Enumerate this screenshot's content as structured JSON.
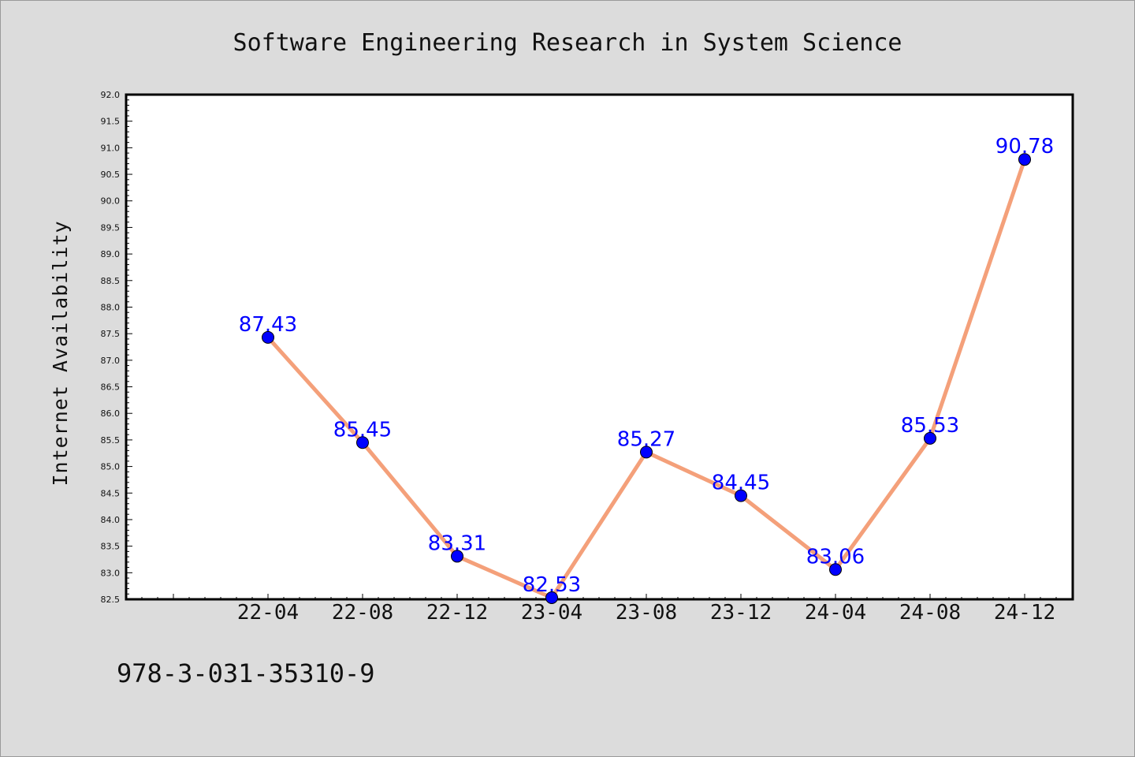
{
  "chart_data": {
    "type": "line",
    "title": "Software Engineering Research in System Science",
    "xlabel": "",
    "ylabel": "Internet Availability",
    "categories": [
      "22-04",
      "22-08",
      "22-12",
      "23-04",
      "23-08",
      "23-12",
      "24-04",
      "24-08",
      "24-12"
    ],
    "values": [
      87.43,
      85.45,
      83.31,
      82.53,
      85.27,
      84.45,
      83.06,
      85.53,
      90.78
    ],
    "data_labels": [
      "87.43",
      "85.45",
      "83.31",
      "82.53",
      "85.27",
      "84.45",
      "83.06",
      "85.53",
      "90.78"
    ],
    "ylim": [
      82.5,
      92.0
    ],
    "ytick_step": 0.5,
    "yticks": [
      "82.5",
      "83.0",
      "83.5",
      "84.0",
      "84.5",
      "85.0",
      "85.5",
      "86.0",
      "86.5",
      "87.0",
      "87.5",
      "88.0",
      "88.5",
      "89.0",
      "89.5",
      "90.0",
      "90.5",
      "91.0",
      "91.5",
      "92.0"
    ],
    "grid": false,
    "legend": "none",
    "colors": {
      "line": "#f4a07a",
      "marker": "#0000ff",
      "data_label": "#0000ff",
      "plot_background": "#ffffff",
      "figure_background": "#dcdcdc"
    }
  },
  "footer": {
    "text": "978-3-031-35310-9"
  }
}
